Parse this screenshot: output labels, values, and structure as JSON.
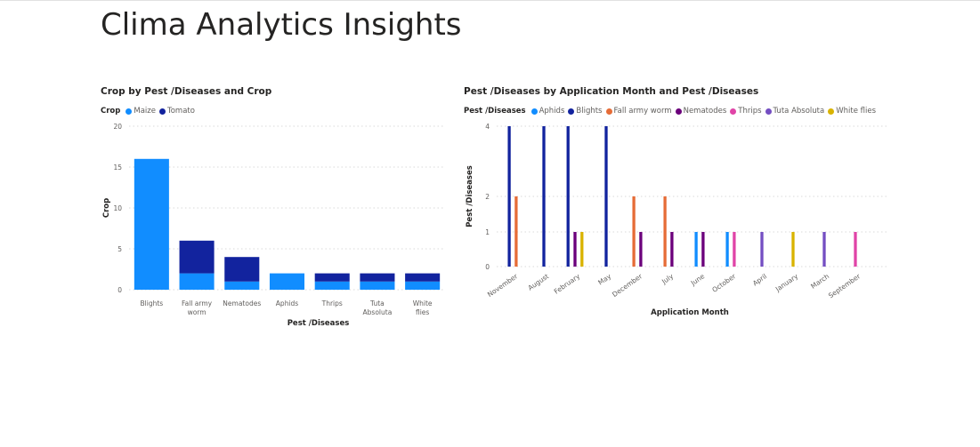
{
  "page": {
    "title": "Clima Analytics Insights"
  },
  "chart_data": [
    {
      "type": "bar",
      "stacked": true,
      "title": "Crop by Pest /Diseases and Crop",
      "legend_title": "Crop",
      "legend_position": "top-left",
      "xlabel": "Pest /Diseases",
      "ylabel": "Crop",
      "ylim": [
        0,
        20
      ],
      "yticks": [
        0,
        5,
        10,
        15,
        20
      ],
      "grid": true,
      "categories": [
        "Blights",
        "Fall army worm",
        "Nematodes",
        "Aphids",
        "Thrips",
        "Tuta Absoluta",
        "White flies"
      ],
      "series": [
        {
          "name": "Maize",
          "color": "#118dff",
          "values": [
            16,
            2,
            1,
            2,
            1,
            1,
            1
          ]
        },
        {
          "name": "Tomato",
          "color": "#12239e",
          "values": [
            0,
            4,
            3,
            0,
            1,
            1,
            1
          ]
        }
      ]
    },
    {
      "type": "bar",
      "grouped": true,
      "title": "Pest /Diseases by Application Month and Pest /Diseases",
      "legend_title": "Pest /Diseases",
      "legend_position": "top-left",
      "xlabel": "Application Month",
      "ylabel": "Pest /Diseases",
      "yticks": [
        0,
        1,
        2,
        3,
        4
      ],
      "grid": true,
      "categories": [
        "November",
        "August",
        "February",
        "May",
        "December",
        "July",
        "June",
        "October",
        "April",
        "January",
        "March",
        "September"
      ],
      "series": [
        {
          "name": "Aphids",
          "color": "#118dff",
          "values": [
            0,
            0,
            0,
            0,
            0,
            0,
            1,
            1,
            0,
            0,
            0,
            0
          ]
        },
        {
          "name": "Blights",
          "color": "#12239e",
          "values": [
            4,
            4,
            4,
            4,
            0,
            0,
            0,
            0,
            0,
            0,
            0,
            0
          ]
        },
        {
          "name": "Fall army worm",
          "color": "#e66c37",
          "values": [
            2,
            0,
            0,
            0,
            2,
            2,
            0,
            0,
            0,
            0,
            0,
            0
          ]
        },
        {
          "name": "Nematodes",
          "color": "#6b007b",
          "values": [
            0,
            0,
            1,
            0,
            1,
            1,
            1,
            0,
            0,
            0,
            0,
            0
          ]
        },
        {
          "name": "Thrips",
          "color": "#e044a7",
          "values": [
            0,
            0,
            0,
            0,
            0,
            0,
            0,
            1,
            0,
            0,
            0,
            1
          ]
        },
        {
          "name": "Tuta Absoluta",
          "color": "#744ec2",
          "values": [
            0,
            0,
            0,
            0,
            0,
            0,
            0,
            0,
            1,
            0,
            1,
            0
          ]
        },
        {
          "name": "White flies",
          "color": "#d9b300",
          "values": [
            0,
            0,
            1,
            0,
            0,
            0,
            0,
            0,
            0,
            1,
            0,
            0
          ]
        }
      ]
    }
  ]
}
